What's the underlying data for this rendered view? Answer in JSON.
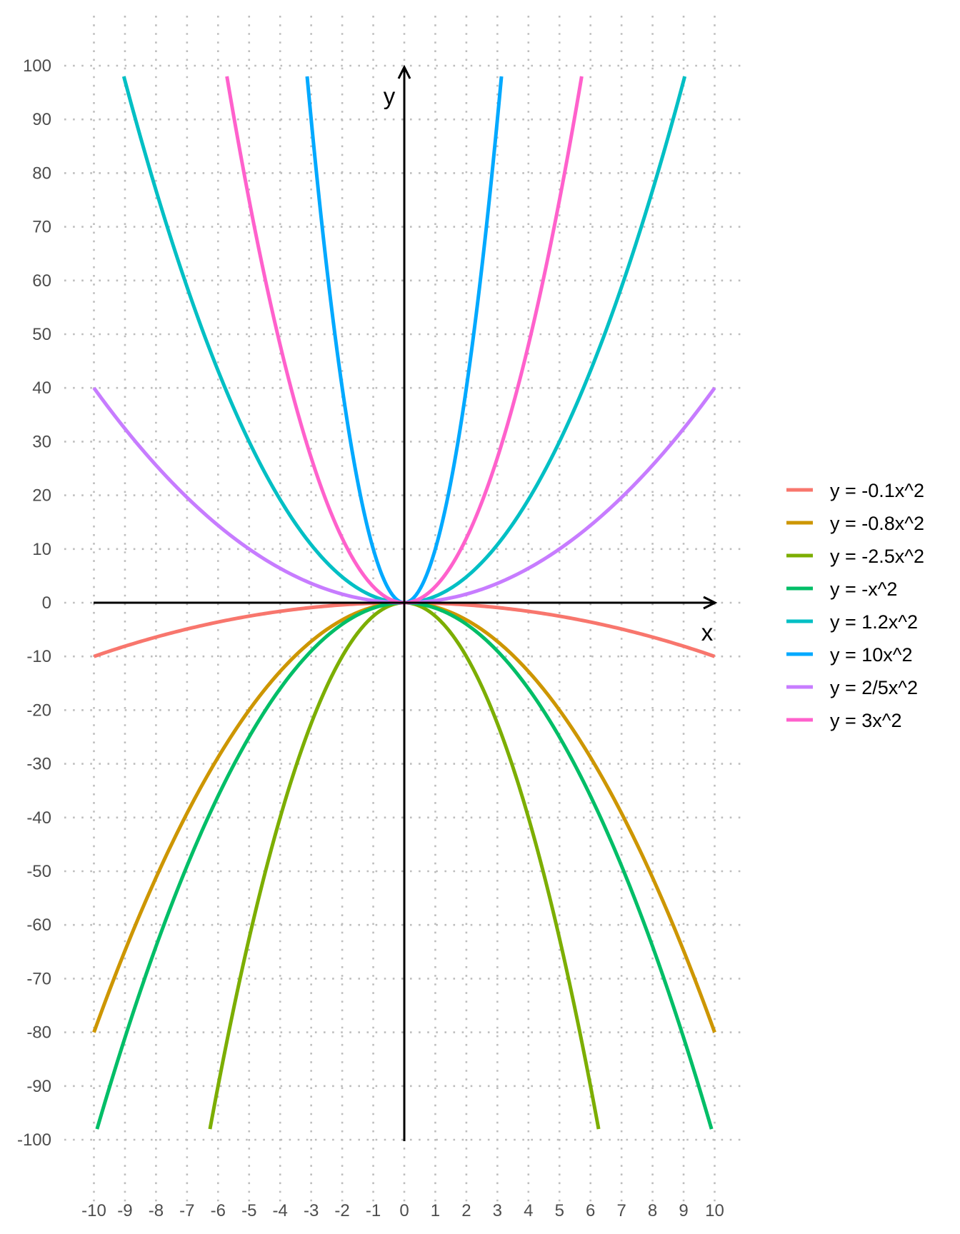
{
  "chart_data": {
    "type": "line",
    "xlabel": "x",
    "ylabel": "y",
    "xlim": [
      -10,
      10
    ],
    "ylim": [
      -100,
      100
    ],
    "x_ticks": [
      -10,
      -9,
      -8,
      -7,
      -6,
      -5,
      -4,
      -3,
      -2,
      -1,
      0,
      1,
      2,
      3,
      4,
      5,
      6,
      7,
      8,
      9,
      10
    ],
    "y_ticks": [
      100,
      90,
      80,
      70,
      60,
      50,
      40,
      30,
      20,
      10,
      0,
      -10,
      -20,
      -30,
      -40,
      -50,
      -60,
      -70,
      -80,
      -90,
      -100
    ],
    "x_tick_labels": [
      "-10",
      "-9",
      "-8",
      "-7",
      "-6",
      "-5",
      "-4",
      "-3",
      "-2",
      "-1",
      "0",
      "1",
      "2",
      "3",
      "4",
      "5",
      "6",
      "7",
      "8",
      "9",
      "10"
    ],
    "y_tick_labels": [
      "100",
      "90",
      "80",
      "70",
      "60",
      "50",
      "40",
      "30",
      "20",
      "10",
      "0",
      "-10",
      "-20",
      "-30",
      "-40",
      "-50",
      "-60",
      "-70",
      "-80",
      "-90",
      "-100"
    ],
    "grid": "dotted",
    "legend_position": "right",
    "series": [
      {
        "name": "y = -0.1x^2",
        "coefficient": -0.1,
        "color": "#F8766D"
      },
      {
        "name": "y = -0.8x^2",
        "coefficient": -0.8,
        "color": "#CD9600"
      },
      {
        "name": "y = -2.5x^2",
        "coefficient": -2.5,
        "color": "#7CAE00"
      },
      {
        "name": "y = -x^2",
        "coefficient": -1,
        "color": "#00BE67"
      },
      {
        "name": "y = 1.2x^2",
        "coefficient": 1.2,
        "color": "#00BFC4"
      },
      {
        "name": "y = 10x^2",
        "coefficient": 10,
        "color": "#00A9FF"
      },
      {
        "name": "y = 2/5x^2",
        "coefficient": 0.4,
        "color": "#C77CFF"
      },
      {
        "name": "y = 3x^2",
        "coefficient": 3,
        "color": "#FF61CC"
      }
    ]
  }
}
